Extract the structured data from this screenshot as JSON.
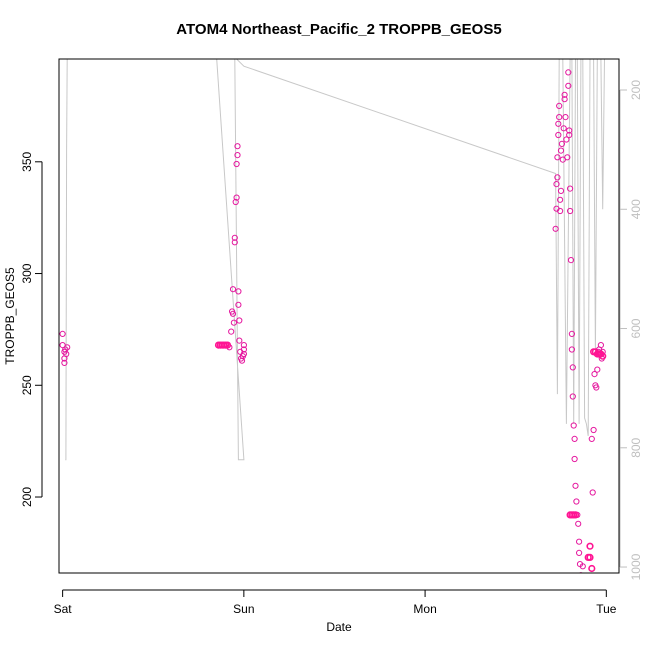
{
  "chart_data": {
    "type": "scatter",
    "title": "ATOM4 Northeast_Pacific_2 TROPPB_GEOS5",
    "xlabel": "Date",
    "ylabel": "TROPPB_GEOS5",
    "x_ticks": [
      "Sat",
      "Sun",
      "Mon",
      "Tue"
    ],
    "xlim": [
      -0.02,
      3.07
    ],
    "ylim": [
      166,
      396
    ],
    "y_ticks": [
      200,
      250,
      300,
      350
    ],
    "y2_ticks": [
      200,
      400,
      600,
      800,
      1000
    ],
    "y2lim": [
      1010,
      148
    ],
    "y2_reversed": true,
    "grid": false,
    "colors": {
      "magenta": "#e5189f",
      "pink": "#ff1493",
      "gray": "#c8c8c8",
      "axis": "#000000"
    },
    "series": [
      {
        "values": [
          [
            0.0,
            273
          ],
          [
            0.0,
            268
          ],
          [
            0.01,
            265
          ],
          [
            0.01,
            262
          ],
          [
            0.01,
            260
          ],
          [
            0.015,
            266
          ],
          [
            0.02,
            264
          ],
          [
            0.025,
            267
          ],
          [
            0.92,
            267
          ],
          [
            0.93,
            274
          ],
          [
            0.935,
            283
          ],
          [
            0.94,
            282
          ],
          [
            0.94,
            293
          ],
          [
            0.945,
            278
          ],
          [
            0.95,
            314
          ],
          [
            0.95,
            316
          ],
          [
            0.955,
            332
          ],
          [
            0.96,
            334
          ],
          [
            0.96,
            349
          ],
          [
            0.965,
            353
          ],
          [
            0.965,
            357
          ],
          [
            0.97,
            292
          ],
          [
            0.97,
            286
          ],
          [
            0.975,
            279
          ],
          [
            0.975,
            270
          ],
          [
            0.98,
            265
          ],
          [
            0.985,
            262
          ],
          [
            0.99,
            261
          ],
          [
            0.995,
            263
          ],
          [
            1.0,
            266
          ],
          [
            1.0,
            264
          ],
          [
            1.0,
            268
          ],
          [
            2.72,
            320
          ],
          [
            2.725,
            329
          ],
          [
            2.725,
            340
          ],
          [
            2.73,
            343
          ],
          [
            2.73,
            352
          ],
          [
            2.735,
            362
          ],
          [
            2.735,
            367
          ],
          [
            2.74,
            370
          ],
          [
            2.74,
            375
          ],
          [
            2.745,
            333
          ],
          [
            2.745,
            328
          ],
          [
            2.75,
            337
          ],
          [
            2.75,
            355
          ],
          [
            2.755,
            358
          ],
          [
            2.76,
            351
          ],
          [
            2.765,
            365
          ],
          [
            2.77,
            378
          ],
          [
            2.77,
            380
          ],
          [
            2.775,
            370
          ],
          [
            2.78,
            360
          ],
          [
            2.785,
            352
          ],
          [
            2.79,
            390
          ],
          [
            2.79,
            384
          ],
          [
            2.795,
            364
          ],
          [
            2.795,
            362
          ],
          [
            2.8,
            338
          ],
          [
            2.8,
            328
          ],
          [
            2.805,
            306
          ],
          [
            2.81,
            273
          ],
          [
            2.81,
            266
          ],
          [
            2.815,
            258
          ],
          [
            2.815,
            245
          ],
          [
            2.82,
            232
          ],
          [
            2.825,
            226
          ],
          [
            2.825,
            217
          ],
          [
            2.83,
            205
          ],
          [
            2.835,
            198
          ],
          [
            2.84,
            192
          ],
          [
            2.845,
            188
          ],
          [
            2.85,
            180
          ],
          [
            2.85,
            175
          ],
          [
            2.855,
            170
          ],
          [
            2.86,
            165
          ],
          [
            2.87,
            169
          ],
          [
            2.92,
            226
          ],
          [
            2.925,
            202
          ],
          [
            2.93,
            230
          ],
          [
            2.935,
            255
          ],
          [
            2.94,
            250
          ],
          [
            2.945,
            249
          ],
          [
            2.95,
            257
          ],
          [
            2.955,
            265
          ],
          [
            2.96,
            266
          ],
          [
            2.965,
            264
          ],
          [
            2.97,
            268
          ],
          [
            2.975,
            262
          ],
          [
            2.98,
            265
          ]
        ]
      },
      {
        "values": [
          [
            0.86,
            268
          ],
          [
            0.87,
            268
          ],
          [
            0.88,
            268
          ],
          [
            0.89,
            268
          ],
          [
            0.9,
            268
          ],
          [
            0.91,
            268
          ],
          [
            2.8,
            192
          ],
          [
            2.81,
            192
          ],
          [
            2.82,
            192
          ],
          [
            2.83,
            192
          ],
          [
            2.83,
            163
          ],
          [
            2.84,
            163
          ],
          [
            2.85,
            163
          ],
          [
            2.86,
            163
          ],
          [
            2.87,
            163
          ],
          [
            2.88,
            163
          ],
          [
            2.89,
            163
          ],
          [
            2.9,
            163
          ],
          [
            2.9,
            173
          ],
          [
            2.91,
            173
          ],
          [
            2.91,
            178
          ],
          [
            2.92,
            168
          ],
          [
            2.93,
            265
          ],
          [
            2.94,
            265
          ],
          [
            2.95,
            264
          ],
          [
            2.96,
            264
          ],
          [
            2.97,
            264
          ],
          [
            2.98,
            263
          ]
        ]
      },
      {
        "line": true,
        "y2_values": [
          [
            0.015,
            820
          ],
          [
            0.018,
            820
          ],
          [
            0.022,
            300
          ],
          [
            0.025,
            148
          ],
          [
            0.5,
            148
          ],
          [
            0.9,
            148
          ],
          [
            0.95,
            148
          ],
          [
            0.97,
            820
          ],
          [
            1.0,
            820
          ],
          [
            1.0,
            820
          ],
          [
            0.85,
            148
          ],
          [
            0.87,
            148
          ],
          [
            0.88,
            148
          ],
          [
            0.95,
            148
          ],
          [
            0.96,
            148
          ],
          [
            1.0,
            160
          ],
          [
            2.72,
            340
          ],
          [
            2.73,
            710
          ],
          [
            2.74,
            148
          ],
          [
            2.76,
            148
          ],
          [
            2.78,
            760
          ],
          [
            2.8,
            148
          ],
          [
            2.81,
            148
          ],
          [
            2.82,
            760
          ],
          [
            2.83,
            148
          ],
          [
            2.84,
            148
          ],
          [
            2.85,
            760
          ],
          [
            2.86,
            148
          ],
          [
            2.87,
            148
          ],
          [
            2.88,
            750
          ],
          [
            2.89,
            760
          ],
          [
            2.9,
            780
          ],
          [
            2.91,
            148
          ],
          [
            2.92,
            148
          ],
          [
            2.93,
            148
          ],
          [
            2.94,
            640
          ],
          [
            2.95,
            148
          ],
          [
            2.96,
            148
          ],
          [
            2.97,
            148
          ],
          [
            2.98,
            400
          ],
          [
            2.99,
            148
          ],
          [
            3.0,
            148
          ]
        ]
      }
    ]
  }
}
